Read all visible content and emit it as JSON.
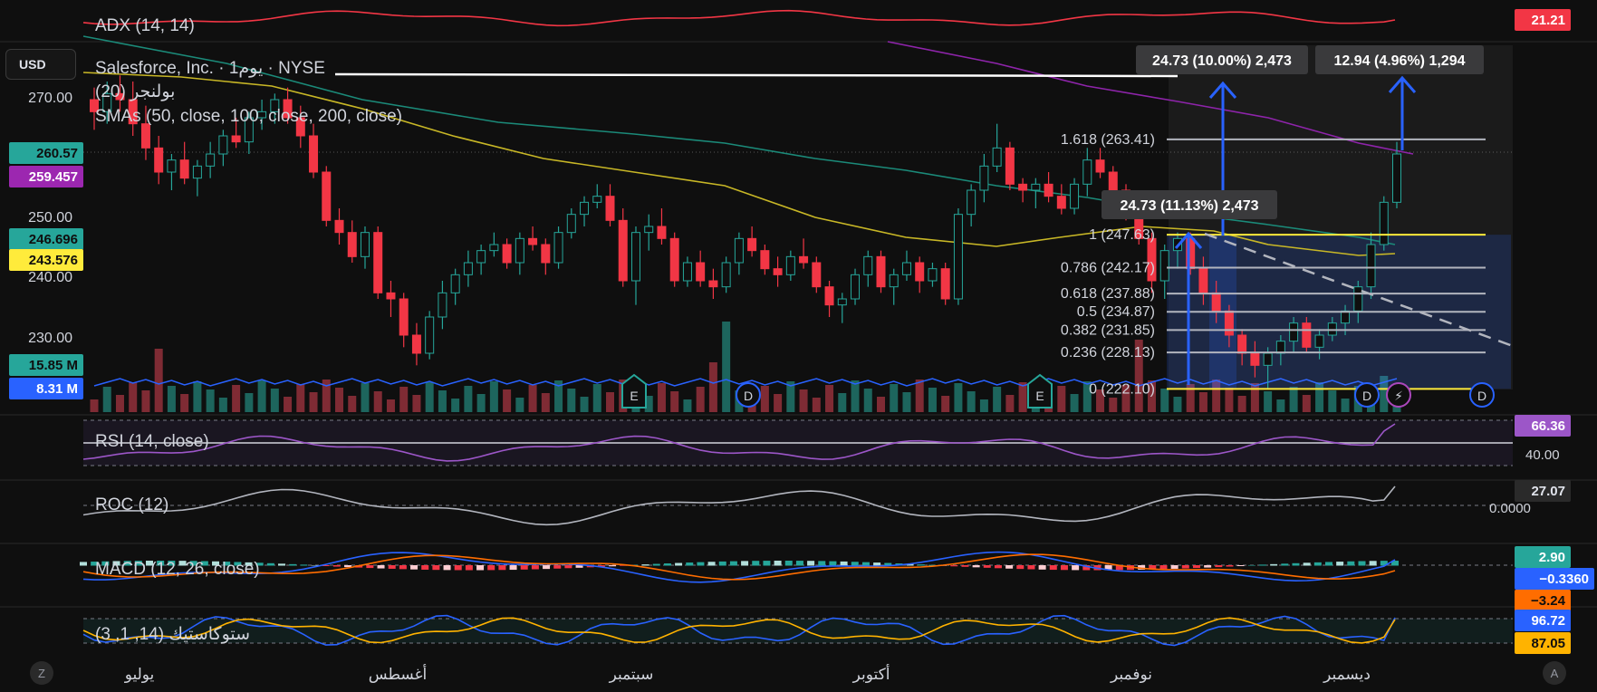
{
  "header": {
    "adx_label": "ADX (14, 14)",
    "symbol_title": "Salesforce, Inc. · 1يوم · NYSE",
    "bb_label": "بولنجر (20)",
    "smas_label": "SMAs (50, close, 100, close, 200, close)"
  },
  "currency_button": "USD",
  "bottom_buttons": {
    "left": "Z",
    "right": "A"
  },
  "panes": {
    "rsi_label": "RSI (14, close)",
    "roc_label": "ROC (12)",
    "macd_label": "MACD (12, 26, close)",
    "stoch_label": "ستوكاستيك (14, 1, 3)"
  },
  "price_axis": {
    "ticks": [
      "270.00",
      "250.00",
      "240.00",
      "230.00"
    ],
    "badges": [
      {
        "text": "260.57",
        "bg": "#26a69a",
        "fg": "#0f0f0f"
      },
      {
        "text": "259.457",
        "bg": "#9c27b0",
        "fg": "#ffffff"
      },
      {
        "text": "246.696",
        "bg": "#26a69a",
        "fg": "#0f0f0f"
      },
      {
        "text": "243.576",
        "bg": "#ffeb3b",
        "fg": "#0f0f0f"
      },
      {
        "text": "15.85 M",
        "bg": "#26a69a",
        "fg": "#0f0f0f"
      },
      {
        "text": "8.31 M",
        "bg": "#2962ff",
        "fg": "#ffffff"
      }
    ]
  },
  "right_badges": {
    "adx": {
      "text": "21.21",
      "bg": "#f23645",
      "fg": "#ffffff"
    },
    "rsi": {
      "text": "66.36",
      "bg": "#9c56c8",
      "fg": "#ffffff"
    },
    "rsi_level": "40.00",
    "roc": {
      "text": "27.07",
      "bg": "#2a2a2a",
      "fg": "#e0e3eb"
    },
    "roc_zero": "0.0000",
    "macd": [
      {
        "text": "2.90",
        "bg": "#26a69a",
        "fg": "#ffffff"
      },
      {
        "text": "−0.3360",
        "bg": "#2962ff",
        "fg": "#ffffff"
      },
      {
        "text": "−3.24",
        "bg": "#ff6d00",
        "fg": "#0f0f0f"
      }
    ],
    "stoch": [
      {
        "text": "96.72",
        "bg": "#2962ff",
        "fg": "#ffffff"
      },
      {
        "text": "87.05",
        "bg": "#ffb300",
        "fg": "#0f0f0f"
      }
    ]
  },
  "time_axis": [
    "يوليو",
    "أغسطس",
    "سبتمبر",
    "أكتوبر",
    "نوفمبر",
    "ديسمبر"
  ],
  "fib_levels": [
    {
      "label": "1.618 (263.41)",
      "value": 263.41
    },
    {
      "label": "1 (247.63)",
      "value": 247.63
    },
    {
      "label": "0.786 (242.17)",
      "value": 242.17
    },
    {
      "label": "0.618 (237.88)",
      "value": 237.88
    },
    {
      "label": "0.5 (234.87)",
      "value": 234.87
    },
    {
      "label": "0.382 (231.85)",
      "value": 231.85
    },
    {
      "label": "0.236 (228.13)",
      "value": 228.13
    },
    {
      "label": "0 (222.10)",
      "value": 222.1
    }
  ],
  "measure_boxes": [
    {
      "text": "24.73 (10.00%) 2,473"
    },
    {
      "text": "12.94 (4.96%) 1,294"
    },
    {
      "text": "24.73 (11.13%) 2,473"
    }
  ],
  "event_markers": [
    "E",
    "D",
    "E",
    "D",
    "⚡",
    "D"
  ],
  "colors": {
    "up": "#26a69a",
    "down": "#f23645",
    "sma50": "#c8b726",
    "sma100": "#1b8a79",
    "sma200": "#8e24aa",
    "adx": "#f23645",
    "rsi": "#9c56c8",
    "macd": "#2962ff",
    "signal": "#ff6d00",
    "stoch_k": "#2962ff",
    "stoch_d": "#ffb300",
    "fib": "#b2b5be"
  },
  "chart_data": {
    "type": "candlestick",
    "y_range": [
      222,
      276
    ],
    "candles_ohlc": [
      [
        270,
        272,
        265,
        268
      ],
      [
        268,
        273,
        266,
        271
      ],
      [
        271,
        274,
        268,
        270
      ],
      [
        270,
        273,
        264,
        266
      ],
      [
        266,
        269,
        260,
        262
      ],
      [
        262,
        264,
        256,
        258
      ],
      [
        258,
        261,
        255,
        260
      ],
      [
        260,
        263,
        256,
        257
      ],
      [
        257,
        260,
        254,
        259
      ],
      [
        259,
        263,
        257,
        261
      ],
      [
        261,
        265,
        259,
        264
      ],
      [
        264,
        267,
        262,
        263
      ],
      [
        263,
        268,
        261,
        267
      ],
      [
        267,
        270,
        265,
        268
      ],
      [
        268,
        271,
        266,
        270
      ],
      [
        270,
        272,
        266,
        267
      ],
      [
        267,
        269,
        262,
        264
      ],
      [
        264,
        266,
        257,
        258
      ],
      [
        258,
        259,
        249,
        250
      ],
      [
        250,
        252,
        246,
        248
      ],
      [
        248,
        250,
        243,
        244
      ],
      [
        244,
        249,
        242,
        248
      ],
      [
        248,
        249,
        237,
        238
      ],
      [
        238,
        240,
        234,
        237
      ],
      [
        237,
        238,
        229,
        231
      ],
      [
        231,
        233,
        226,
        228
      ],
      [
        228,
        235,
        227,
        234
      ],
      [
        234,
        240,
        232,
        238
      ],
      [
        238,
        242,
        236,
        241
      ],
      [
        241,
        245,
        239,
        243
      ],
      [
        243,
        246,
        241,
        245
      ],
      [
        245,
        248,
        244,
        246
      ],
      [
        246,
        247,
        242,
        243
      ],
      [
        243,
        248,
        241,
        247
      ],
      [
        247,
        249,
        245,
        246
      ],
      [
        246,
        247,
        241,
        243
      ],
      [
        243,
        249,
        242,
        248
      ],
      [
        248,
        252,
        247,
        251
      ],
      [
        251,
        254,
        249,
        253
      ],
      [
        253,
        256,
        252,
        254
      ],
      [
        254,
        256,
        249,
        250
      ],
      [
        250,
        252,
        239,
        240
      ],
      [
        240,
        249,
        236,
        248
      ],
      [
        248,
        251,
        245,
        249
      ],
      [
        249,
        252,
        246,
        247
      ],
      [
        247,
        248,
        239,
        240
      ],
      [
        240,
        244,
        239,
        243
      ],
      [
        243,
        245,
        239,
        240
      ],
      [
        240,
        242,
        237,
        239
      ],
      [
        239,
        244,
        238,
        243
      ],
      [
        243,
        248,
        241,
        247
      ],
      [
        247,
        249,
        244,
        245
      ],
      [
        245,
        246,
        241,
        242
      ],
      [
        242,
        244,
        239,
        241
      ],
      [
        241,
        245,
        240,
        244
      ],
      [
        244,
        247,
        242,
        243
      ],
      [
        243,
        244,
        238,
        239
      ],
      [
        239,
        240,
        234,
        236
      ],
      [
        236,
        238,
        233,
        237
      ],
      [
        237,
        242,
        236,
        241
      ],
      [
        241,
        245,
        239,
        244
      ],
      [
        244,
        245,
        238,
        239
      ],
      [
        239,
        242,
        236,
        241
      ],
      [
        241,
        245,
        240,
        243
      ],
      [
        243,
        244,
        238,
        240
      ],
      [
        240,
        243,
        239,
        242
      ],
      [
        242,
        243,
        236,
        237
      ],
      [
        237,
        252,
        236,
        251
      ],
      [
        251,
        256,
        249,
        255
      ],
      [
        255,
        261,
        253,
        259
      ],
      [
        259,
        266,
        258,
        262
      ],
      [
        262,
        263,
        255,
        256
      ],
      [
        256,
        257,
        253,
        255
      ],
      [
        255,
        257,
        252,
        256
      ],
      [
        256,
        258,
        253,
        254
      ],
      [
        254,
        256,
        251,
        252
      ],
      [
        252,
        257,
        251,
        256
      ],
      [
        256,
        262,
        254,
        260
      ],
      [
        260,
        262,
        257,
        258
      ],
      [
        258,
        259,
        254,
        255
      ],
      [
        255,
        256,
        250,
        252
      ],
      [
        252,
        253,
        246,
        247
      ],
      [
        247,
        248,
        238,
        240
      ],
      [
        240,
        246,
        237,
        245
      ],
      [
        245,
        248,
        242,
        247
      ],
      [
        247,
        248,
        241,
        242
      ],
      [
        242,
        244,
        236,
        238
      ],
      [
        238,
        240,
        233,
        235
      ],
      [
        235,
        236,
        229,
        231
      ],
      [
        231,
        232,
        226,
        228
      ],
      [
        228,
        230,
        224,
        226
      ],
      [
        226,
        229,
        222,
        228
      ],
      [
        228,
        231,
        226,
        230
      ],
      [
        230,
        234,
        228,
        233
      ],
      [
        233,
        234,
        228,
        229
      ],
      [
        229,
        232,
        227,
        231
      ],
      [
        231,
        234,
        230,
        233
      ],
      [
        233,
        236,
        231,
        235
      ],
      [
        235,
        240,
        233,
        239
      ],
      [
        239,
        248,
        237,
        246
      ],
      [
        246,
        254,
        245,
        253
      ],
      [
        253,
        263,
        252,
        261
      ]
    ]
  }
}
